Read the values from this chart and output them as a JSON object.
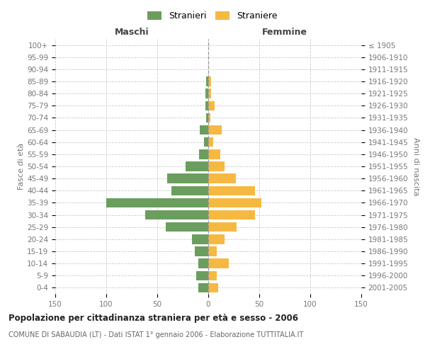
{
  "age_groups": [
    "100+",
    "95-99",
    "90-94",
    "85-89",
    "80-84",
    "75-79",
    "70-74",
    "65-69",
    "60-64",
    "55-59",
    "50-54",
    "45-49",
    "40-44",
    "35-39",
    "30-34",
    "25-29",
    "20-24",
    "15-19",
    "10-14",
    "5-9",
    "0-4"
  ],
  "birth_years": [
    "≤ 1905",
    "1906-1910",
    "1911-1915",
    "1916-1920",
    "1921-1925",
    "1926-1930",
    "1931-1935",
    "1936-1940",
    "1941-1945",
    "1946-1950",
    "1951-1955",
    "1956-1960",
    "1961-1965",
    "1966-1970",
    "1971-1975",
    "1976-1980",
    "1981-1985",
    "1986-1990",
    "1991-1995",
    "1996-2000",
    "2001-2005"
  ],
  "maschi": [
    0,
    0,
    0,
    2,
    3,
    3,
    2,
    8,
    4,
    9,
    22,
    40,
    36,
    100,
    62,
    42,
    16,
    13,
    10,
    12,
    10
  ],
  "femmine": [
    0,
    0,
    0,
    3,
    3,
    6,
    2,
    13,
    5,
    12,
    16,
    27,
    46,
    52,
    46,
    28,
    16,
    8,
    20,
    8,
    10
  ],
  "color_maschi": "#6b9e5e",
  "color_femmine": "#f5b942",
  "xlim": 150,
  "title": "Popolazione per cittadinanza straniera per età e sesso - 2006",
  "subtitle": "COMUNE DI SABAUDIA (LT) - Dati ISTAT 1° gennaio 2006 - Elaborazione TUTTITALIA.IT",
  "label_maschi": "Stranieri",
  "label_femmine": "Straniere",
  "header_left": "Maschi",
  "header_right": "Femmine",
  "ylabel_left": "Fasce di età",
  "ylabel_right": "Anni di nascita",
  "bg_color": "#ffffff",
  "grid_color": "#cccccc",
  "tick_color": "#777777"
}
